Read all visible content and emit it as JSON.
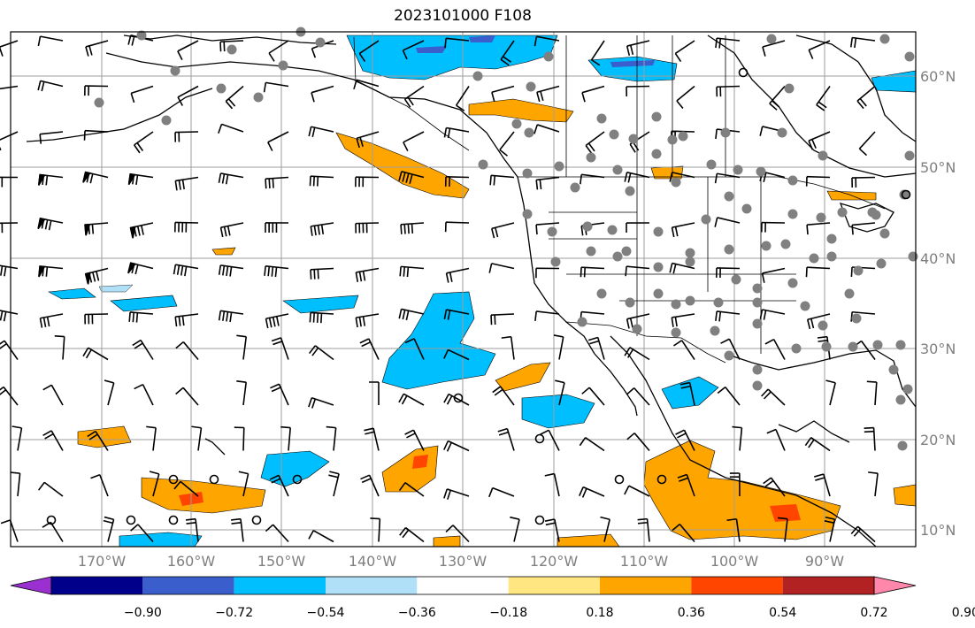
{
  "title": "2023101000 F108",
  "colors": {
    "land": "#ffffff",
    "coast": "#000000",
    "grid": "#9e9e9e",
    "axis_label": "#7f7f7f"
  },
  "lat_labels": [
    "60°N",
    "50°N",
    "40°N",
    "30°N",
    "20°N",
    "10°N"
  ],
  "lon_labels": [
    "170°W",
    "160°W",
    "150°W",
    "140°W",
    "130°W",
    "120°W",
    "110°W",
    "100°W",
    "90°W"
  ],
  "colorbar": {
    "labels": [
      "−0.90",
      "−0.72",
      "−0.54",
      "−0.36",
      "−0.18",
      "0.18",
      "0.36",
      "0.54",
      "0.72",
      "0.90"
    ],
    "colors": [
      "#9b30d0",
      "#00008b",
      "#3a5fcd",
      "#00bfff",
      "#b0e0f7",
      "#ffffff",
      "#ffe680",
      "#ffa500",
      "#ff4500",
      "#b22222",
      "#ff88aa"
    ]
  },
  "fields": {
    "cyan": "#00bfff",
    "lightblue": "#b0e0f7",
    "blue": "#3a5fcd",
    "orange": "#ffa500",
    "red": "#ff4500",
    "yellow": "#ffe680"
  }
}
